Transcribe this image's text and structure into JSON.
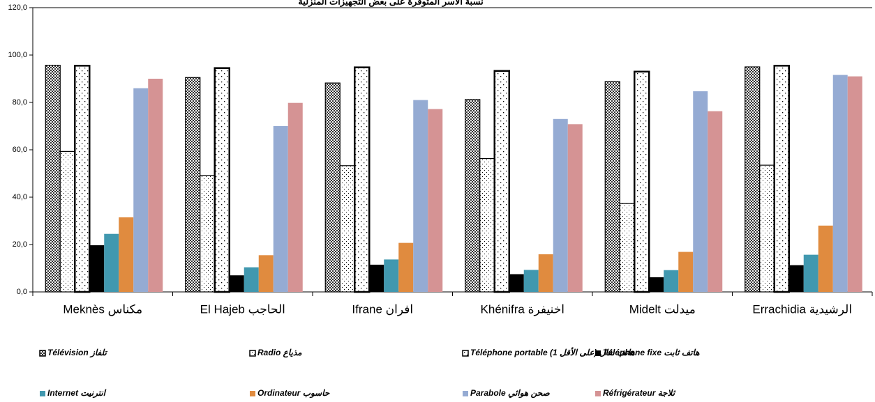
{
  "chart_data": {
    "type": "bar",
    "title": "نسبة الأسر المتوفرة على بعض التجهيزات المنزلية",
    "categories": [
      "Meknès   مكناس",
      "El Hajeb   الحاجب",
      "Ifrane   افران",
      "Khénifra  اخنيفرة",
      "Midelt      ميدلت",
      "Errachidia   الرشيدية"
    ],
    "series": [
      {
        "name": "Télévision  تلفاز",
        "color": "pattern-cross",
        "values": [
          95.7,
          90.5,
          88.2,
          81.2,
          88.8,
          95.0
        ]
      },
      {
        "name": "Radio  مذياع",
        "color": "pattern-dots",
        "values": [
          59.3,
          49.2,
          53.3,
          56.3,
          37.3,
          53.5
        ]
      },
      {
        "name": "Téléphone portable (1 على الأقل) هاتف نقال",
        "color": "pattern-dots-bold",
        "values": [
          95.5,
          94.5,
          94.8,
          93.3,
          93.0,
          95.5
        ]
      },
      {
        "name": "Téléphone fixe  هاتف ثابت",
        "color": "#000000",
        "values": [
          19.7,
          7.0,
          11.5,
          7.5,
          6.2,
          11.3
        ]
      },
      {
        "name": "Internet  انترنيت",
        "color": "#4198af",
        "values": [
          24.5,
          10.4,
          13.7,
          9.3,
          9.2,
          15.7
        ]
      },
      {
        "name": "Ordinateur  حاسوب",
        "color": "#e08b3f",
        "values": [
          31.5,
          15.5,
          20.7,
          15.9,
          16.9,
          28.0
        ]
      },
      {
        "name": "Parabole  صحن هوائي",
        "color": "#95abd3",
        "values": [
          86.0,
          70.0,
          81.0,
          73.0,
          84.7,
          91.6
        ]
      },
      {
        "name": "Réfrigérateur  ثلاجة",
        "color": "#d59394",
        "values": [
          90.0,
          79.8,
          77.2,
          70.8,
          76.3,
          91.0
        ]
      }
    ],
    "ylim": [
      0,
      120
    ],
    "yticks": [
      {
        "value": 0,
        "label": "0,0"
      },
      {
        "value": 20,
        "label": "20,0"
      },
      {
        "value": 40,
        "label": "40,0"
      },
      {
        "value": 60,
        "label": "60,0"
      },
      {
        "value": 80,
        "label": "80,0"
      },
      {
        "value": 100,
        "label": "100,0"
      },
      {
        "value": 120,
        "label": "120,0"
      }
    ],
    "grid": false
  }
}
